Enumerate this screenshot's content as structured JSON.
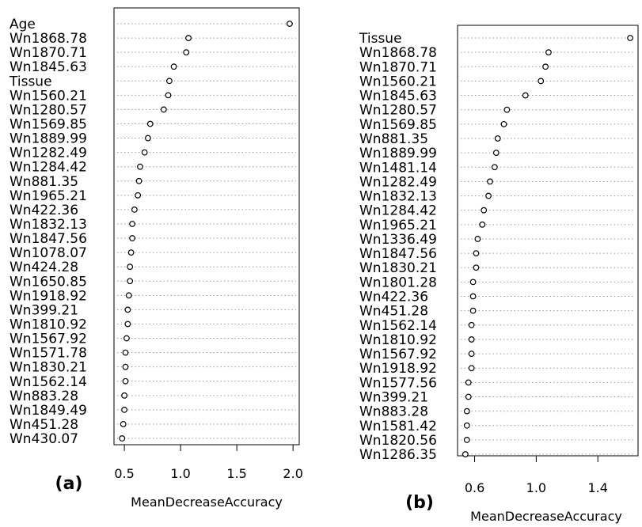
{
  "chart_data": [
    {
      "type": "dotplot",
      "panel_label": "(a)",
      "xlabel": "MeanDecreaseAccuracy",
      "xticks": [
        "0.5",
        "1.0",
        "1.5",
        "2.0"
      ],
      "xlim": [
        0.45,
        2.02
      ],
      "grid": "dotted horizontal guide per row",
      "legend": "none",
      "point_marker": "open circle",
      "categories": [
        "Age",
        "Wn1868.78",
        "Wn1870.71",
        "Wn1845.63",
        "Tissue",
        "Wn1560.21",
        "Wn1280.57",
        "Wn1569.85",
        "Wn1889.99",
        "Wn1282.49",
        "Wn1284.42",
        "Wn881.35",
        "Wn1965.21",
        "Wn422.36",
        "Wn1832.13",
        "Wn1847.56",
        "Wn1078.07",
        "Wn424.28",
        "Wn1650.85",
        "Wn1918.92",
        "Wn399.21",
        "Wn1810.92",
        "Wn1567.92",
        "Wn1571.78",
        "Wn1830.21",
        "Wn1562.14",
        "Wn883.28",
        "Wn1849.49",
        "Wn451.28",
        "Wn430.07"
      ],
      "values": [
        1.97,
        1.07,
        1.05,
        0.94,
        0.9,
        0.89,
        0.85,
        0.73,
        0.71,
        0.68,
        0.64,
        0.63,
        0.62,
        0.59,
        0.57,
        0.57,
        0.56,
        0.55,
        0.55,
        0.54,
        0.53,
        0.53,
        0.52,
        0.51,
        0.51,
        0.51,
        0.5,
        0.5,
        0.49,
        0.48
      ]
    },
    {
      "type": "dotplot",
      "panel_label": "(b)",
      "xlabel": "MeanDecreaseAccuracy",
      "xticks": [
        "0.6",
        "1.0",
        "1.4"
      ],
      "xlim": [
        0.515,
        1.63
      ],
      "grid": "dotted horizontal guide per row",
      "legend": "none",
      "point_marker": "open circle",
      "categories": [
        "Tissue",
        "Wn1868.78",
        "Wn1870.71",
        "Wn1560.21",
        "Wn1845.63",
        "Wn1280.57",
        "Wn1569.85",
        "Wn881.35",
        "Wn1889.99",
        "Wn1481.14",
        "Wn1282.49",
        "Wn1832.13",
        "Wn1284.42",
        "Wn1965.21",
        "Wn1336.49",
        "Wn1847.56",
        "Wn1830.21",
        "Wn1801.28",
        "Wn422.36",
        "Wn451.28",
        "Wn1562.14",
        "Wn1810.92",
        "Wn1567.92",
        "Wn1918.92",
        "Wn1577.56",
        "Wn399.21",
        "Wn883.28",
        "Wn1581.42",
        "Wn1820.56",
        "Wn1286.35"
      ],
      "values": [
        1.61,
        1.08,
        1.06,
        1.03,
        0.93,
        0.81,
        0.79,
        0.75,
        0.74,
        0.73,
        0.7,
        0.69,
        0.66,
        0.65,
        0.62,
        0.61,
        0.61,
        0.59,
        0.59,
        0.59,
        0.58,
        0.58,
        0.58,
        0.58,
        0.56,
        0.56,
        0.55,
        0.55,
        0.55,
        0.54
      ]
    }
  ]
}
